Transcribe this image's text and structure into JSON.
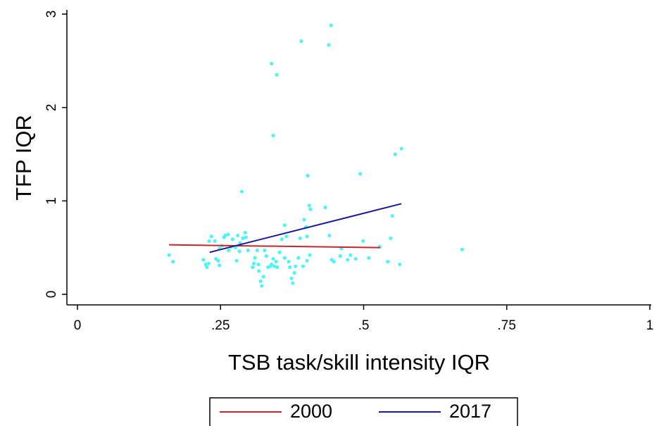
{
  "chart_data": {
    "type": "scatter",
    "x_label": "TSB task/skill intensity IQR",
    "y_label": "TFP IQR",
    "xlim": [
      0,
      1
    ],
    "ylim": [
      0,
      3
    ],
    "xticks": [
      0,
      {
        "value": 0.25,
        "label": ".25"
      },
      {
        "value": 0.5,
        "label": ".5"
      },
      {
        "value": 0.75,
        "label": ".75"
      },
      1
    ],
    "yticks": [
      0,
      1,
      2,
      3
    ],
    "points": {
      "color": "#4ff5f5",
      "x": [
        0.16,
        0.167,
        0.22,
        0.224,
        0.226,
        0.229,
        0.23,
        0.234,
        0.24,
        0.242,
        0.246,
        0.248,
        0.248,
        0.252,
        0.256,
        0.258,
        0.263,
        0.268,
        0.271,
        0.276,
        0.28,
        0.284,
        0.287,
        0.289,
        0.293,
        0.294,
        0.298,
        0.283,
        0.278,
        0.264,
        0.308,
        0.306,
        0.31,
        0.314,
        0.316,
        0.317,
        0.32,
        0.322,
        0.325,
        0.327,
        0.33,
        0.333,
        0.337,
        0.339,
        0.342,
        0.344,
        0.347,
        0.349,
        0.353,
        0.357,
        0.362,
        0.362,
        0.365,
        0.369,
        0.371,
        0.374,
        0.376,
        0.379,
        0.381,
        0.386,
        0.389,
        0.342,
        0.339,
        0.348,
        0.391,
        0.394,
        0.399,
        0.401,
        0.406,
        0.401,
        0.396,
        0.405,
        0.407,
        0.402,
        0.433,
        0.44,
        0.443,
        0.439,
        0.444,
        0.448,
        0.459,
        0.461,
        0.472,
        0.477,
        0.486,
        0.494,
        0.499,
        0.509,
        0.528,
        0.542,
        0.547,
        0.55,
        0.555,
        0.566,
        0.563,
        0.672
      ],
      "y": [
        0.42,
        0.35,
        0.37,
        0.32,
        0.29,
        0.33,
        0.57,
        0.62,
        0.57,
        0.38,
        0.36,
        0.31,
        0.49,
        0.52,
        0.61,
        0.63,
        0.64,
        0.51,
        0.59,
        0.5,
        0.63,
        0.55,
        1.1,
        0.6,
        0.66,
        0.61,
        0.47,
        0.46,
        0.36,
        0.47,
        0.33,
        0.29,
        0.39,
        0.47,
        0.32,
        0.25,
        0.14,
        0.09,
        0.19,
        0.47,
        0.41,
        0.29,
        0.3,
        0.32,
        0.38,
        0.3,
        0.35,
        0.29,
        0.45,
        0.59,
        0.74,
        0.39,
        0.62,
        0.35,
        0.29,
        0.17,
        0.12,
        0.23,
        0.3,
        0.39,
        0.6,
        1.7,
        2.47,
        2.35,
        2.71,
        0.3,
        0.72,
        0.36,
        0.42,
        0.62,
        0.8,
        0.95,
        0.91,
        1.27,
        0.93,
        0.63,
        2.88,
        2.67,
        0.37,
        0.35,
        0.41,
        0.49,
        0.37,
        0.42,
        0.38,
        1.29,
        0.57,
        0.39,
        0.51,
        0.35,
        0.6,
        0.84,
        1.5,
        1.56,
        0.32,
        0.48
      ]
    },
    "series": [
      {
        "name": "2000",
        "color": "#c4262c",
        "x": [
          0.16,
          0.529
        ],
        "values": [
          0.53,
          0.5
        ]
      },
      {
        "name": "2017",
        "color": "#1a1a96",
        "x": [
          0.231,
          0.566
        ],
        "values": [
          0.45,
          0.97
        ]
      }
    ]
  }
}
